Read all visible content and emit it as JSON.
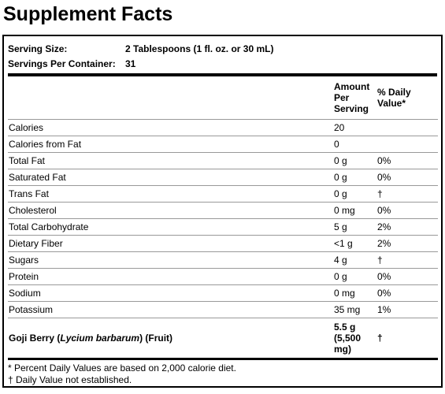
{
  "title": "Supplement Facts",
  "serving": [
    {
      "label": "Serving Size:",
      "value": "2 Tablespoons (1 fl. oz. or 30 mL)"
    },
    {
      "label": "Servings Per Container:",
      "value": "31"
    }
  ],
  "table": {
    "header": [
      "Amount Per Serving",
      "% Daily Value*"
    ],
    "rows": [
      {
        "name": "Calories",
        "amount": "20"
      },
      {
        "name": "Calories from Fat",
        "amount": "0"
      },
      {
        "name": "Total Fat",
        "amount": "0 g",
        "dv": "0%"
      },
      {
        "name": "Saturated Fat",
        "amount": "0 g",
        "dv": "0%"
      },
      {
        "name": "Trans Fat",
        "amount": "0 g",
        "dv": "†"
      },
      {
        "name": "Cholesterol",
        "amount": "0 mg",
        "dv": "0%"
      },
      {
        "name": "Total Carbohydrate",
        "amount": "5 g",
        "dv": "2%"
      },
      {
        "name": "Dietary Fiber",
        "amount": "<1 g",
        "dv": "2%"
      },
      {
        "name": "Sugars",
        "amount": "4 g",
        "dv": "†"
      },
      {
        "name": "Protein",
        "amount": "0 g",
        "dv": "0%"
      },
      {
        "name": "Sodium",
        "amount": "0 mg",
        "dv": "0%"
      },
      {
        "name": "Potassium",
        "amount": "35 mg",
        "dv": "1%"
      },
      {
        "name": [
          "Goji Berry (",
          "Lycium barbarum",
          ") (Fruit)"
        ],
        "amount": "5.5 g (5,500 mg)",
        "dv": "†",
        "bold": true
      }
    ]
  },
  "footnotes": [
    "* Percent Daily Values are based on 2,000 calorie diet.",
    "† Daily Value not established."
  ]
}
